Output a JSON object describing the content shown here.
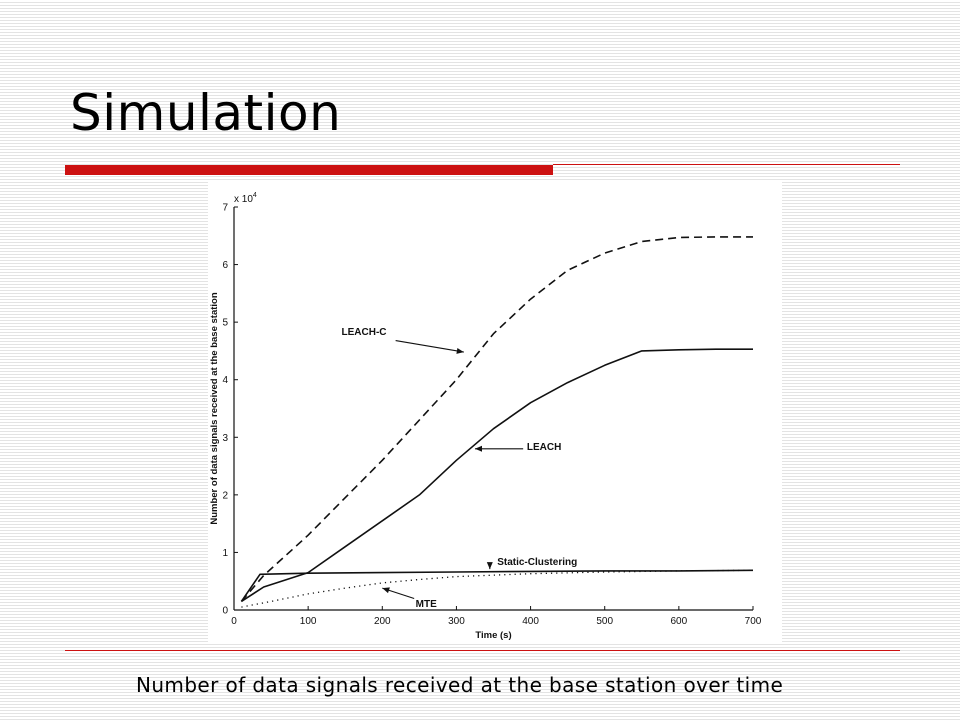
{
  "slide": {
    "title": "Simulation",
    "caption": "Number of data signals received at the base station over time",
    "accent_color": "#cc1111"
  },
  "chart_data": {
    "type": "line",
    "title": "",
    "xlabel": "Time (s)",
    "ylabel": "Number of data signals received at the base station",
    "y_multiplier": "x 10",
    "y_multiplier_exponent": "4",
    "xlim": [
      0,
      700
    ],
    "ylim": [
      0,
      7
    ],
    "x_ticks": [
      0,
      100,
      200,
      300,
      400,
      500,
      600,
      700
    ],
    "y_ticks": [
      0,
      1,
      2,
      3,
      4,
      5,
      6,
      7
    ],
    "grid": false,
    "legend": "none (inline annotations with arrows)",
    "series": [
      {
        "name": "LEACH-C",
        "style": "dashed",
        "x": [
          10,
          40,
          100,
          150,
          200,
          250,
          300,
          350,
          400,
          450,
          500,
          550,
          600,
          650,
          700
        ],
        "y": [
          0.15,
          0.6,
          1.3,
          1.95,
          2.6,
          3.3,
          4.0,
          4.8,
          5.4,
          5.9,
          6.2,
          6.4,
          6.47,
          6.48,
          6.48
        ]
      },
      {
        "name": "LEACH",
        "style": "solid",
        "x": [
          10,
          40,
          100,
          150,
          200,
          250,
          300,
          350,
          400,
          450,
          500,
          550,
          600,
          650,
          700
        ],
        "y": [
          0.15,
          0.4,
          0.65,
          1.1,
          1.55,
          2.0,
          2.6,
          3.15,
          3.6,
          3.95,
          4.25,
          4.5,
          4.52,
          4.53,
          4.53
        ]
      },
      {
        "name": "Static-Clustering",
        "style": "solid",
        "x": [
          10,
          35,
          100,
          200,
          300,
          400,
          500,
          600,
          700
        ],
        "y": [
          0.15,
          0.62,
          0.64,
          0.65,
          0.66,
          0.67,
          0.68,
          0.68,
          0.69
        ]
      },
      {
        "name": "MTE",
        "style": "dotted",
        "x": [
          10,
          50,
          100,
          150,
          200,
          250,
          300,
          400,
          500,
          600,
          700
        ],
        "y": [
          0.05,
          0.15,
          0.28,
          0.38,
          0.47,
          0.53,
          0.58,
          0.63,
          0.66,
          0.68,
          0.69
        ]
      }
    ],
    "annotations": [
      {
        "text": "LEACH-C",
        "series": "LEACH-C"
      },
      {
        "text": "LEACH",
        "series": "LEACH"
      },
      {
        "text": "Static-Clustering",
        "series": "Static-Clustering"
      },
      {
        "text": "MTE",
        "series": "MTE"
      }
    ]
  }
}
